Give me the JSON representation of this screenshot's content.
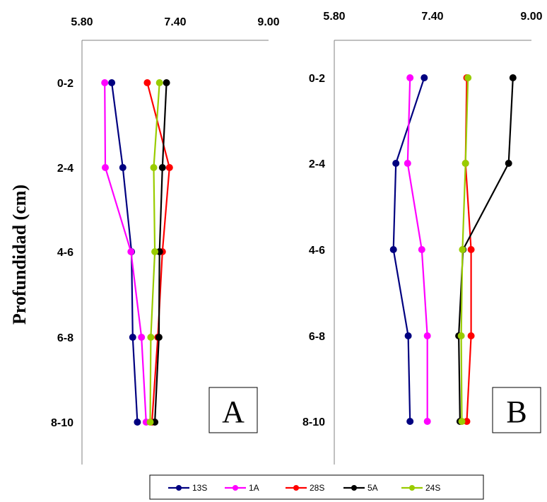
{
  "chart_data": {
    "type": "line",
    "ylabel": "Profundidad (cm)",
    "depths": [
      "0-2",
      "2-4",
      "4-6",
      "6-8",
      "8-10"
    ],
    "x_ticks": [
      "5.80",
      "7.40",
      "9.00"
    ],
    "xlim": [
      5.8,
      9.0
    ],
    "legend_position": "bottom",
    "legend": [
      "13S",
      "1A",
      "28S",
      "5A",
      "24S"
    ],
    "colors": {
      "13S": "#000080",
      "1A": "#ff00ff",
      "28S": "#ff0000",
      "5A": "#000000",
      "24S": "#99cc00"
    },
    "panels": [
      {
        "label": "A",
        "series": [
          {
            "name": "13S",
            "values": [
              6.31,
              6.5,
              6.65,
              6.67,
              6.75
            ]
          },
          {
            "name": "1A",
            "values": [
              6.19,
              6.2,
              6.64,
              6.82,
              6.9
            ]
          },
          {
            "name": "28S",
            "values": [
              6.92,
              7.3,
              7.18,
              7.1,
              7.0
            ]
          },
          {
            "name": "5A",
            "values": [
              7.25,
              7.18,
              7.13,
              7.12,
              7.05
            ]
          },
          {
            "name": "24S",
            "values": [
              7.13,
              7.03,
              7.05,
              6.98,
              6.97
            ]
          }
        ]
      },
      {
        "label": "B",
        "series": [
          {
            "name": "13S",
            "values": [
              7.26,
              6.8,
              6.76,
              7.0,
              7.03
            ]
          },
          {
            "name": "1A",
            "values": [
              7.03,
              6.99,
              7.22,
              7.31,
              7.31
            ]
          },
          {
            "name": "28S",
            "values": [
              7.95,
              7.93,
              8.02,
              8.02,
              7.95
            ]
          },
          {
            "name": "5A",
            "values": [
              8.7,
              8.63,
              7.89,
              7.82,
              7.84
            ]
          },
          {
            "name": "24S",
            "values": [
              7.97,
              7.93,
              7.88,
              7.86,
              7.87
            ]
          }
        ]
      }
    ]
  }
}
